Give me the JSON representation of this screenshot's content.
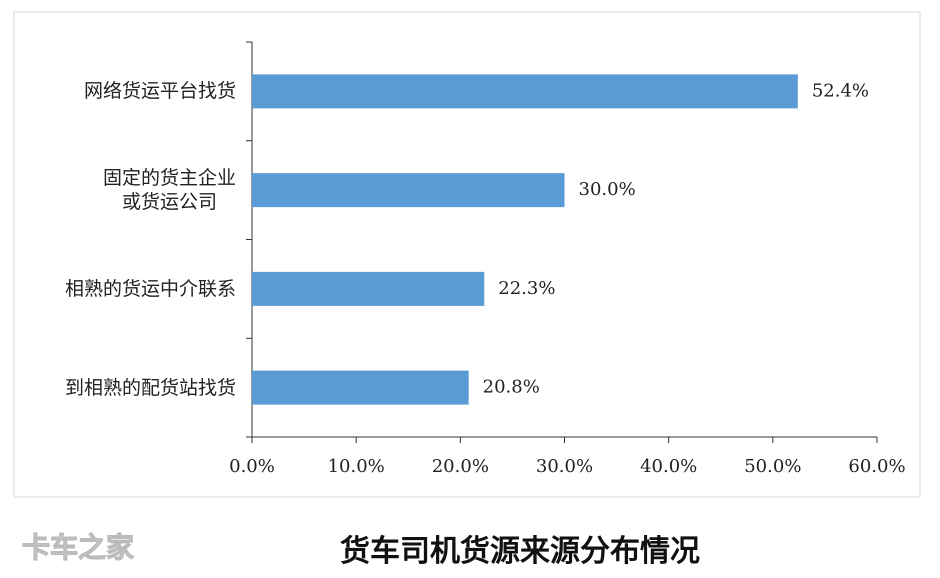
{
  "chart_data": {
    "type": "bar",
    "orientation": "horizontal",
    "title": "货车司机货源来源分布情况",
    "watermark": "卡车之家",
    "categories": [
      "网络货运平台找货",
      "固定的货主企业\n或货运公司",
      "相熟的货运中介联系",
      "到相熟的配货站找货"
    ],
    "values": [
      52.4,
      30.0,
      22.3,
      20.8
    ],
    "value_labels": [
      "52.4%",
      "30.0%",
      "22.3%",
      "20.8%"
    ],
    "color": "#5b9bd5",
    "xlim": [
      0,
      60
    ],
    "xticks": [
      {
        "value": 0,
        "label": "0.0%"
      },
      {
        "value": 10,
        "label": "10.0%"
      },
      {
        "value": 20,
        "label": "20.0%"
      },
      {
        "value": 30,
        "label": "30.0%"
      },
      {
        "value": 40,
        "label": "40.0%"
      },
      {
        "value": 50,
        "label": "50.0%"
      },
      {
        "value": 60,
        "label": "60.0%"
      }
    ]
  }
}
